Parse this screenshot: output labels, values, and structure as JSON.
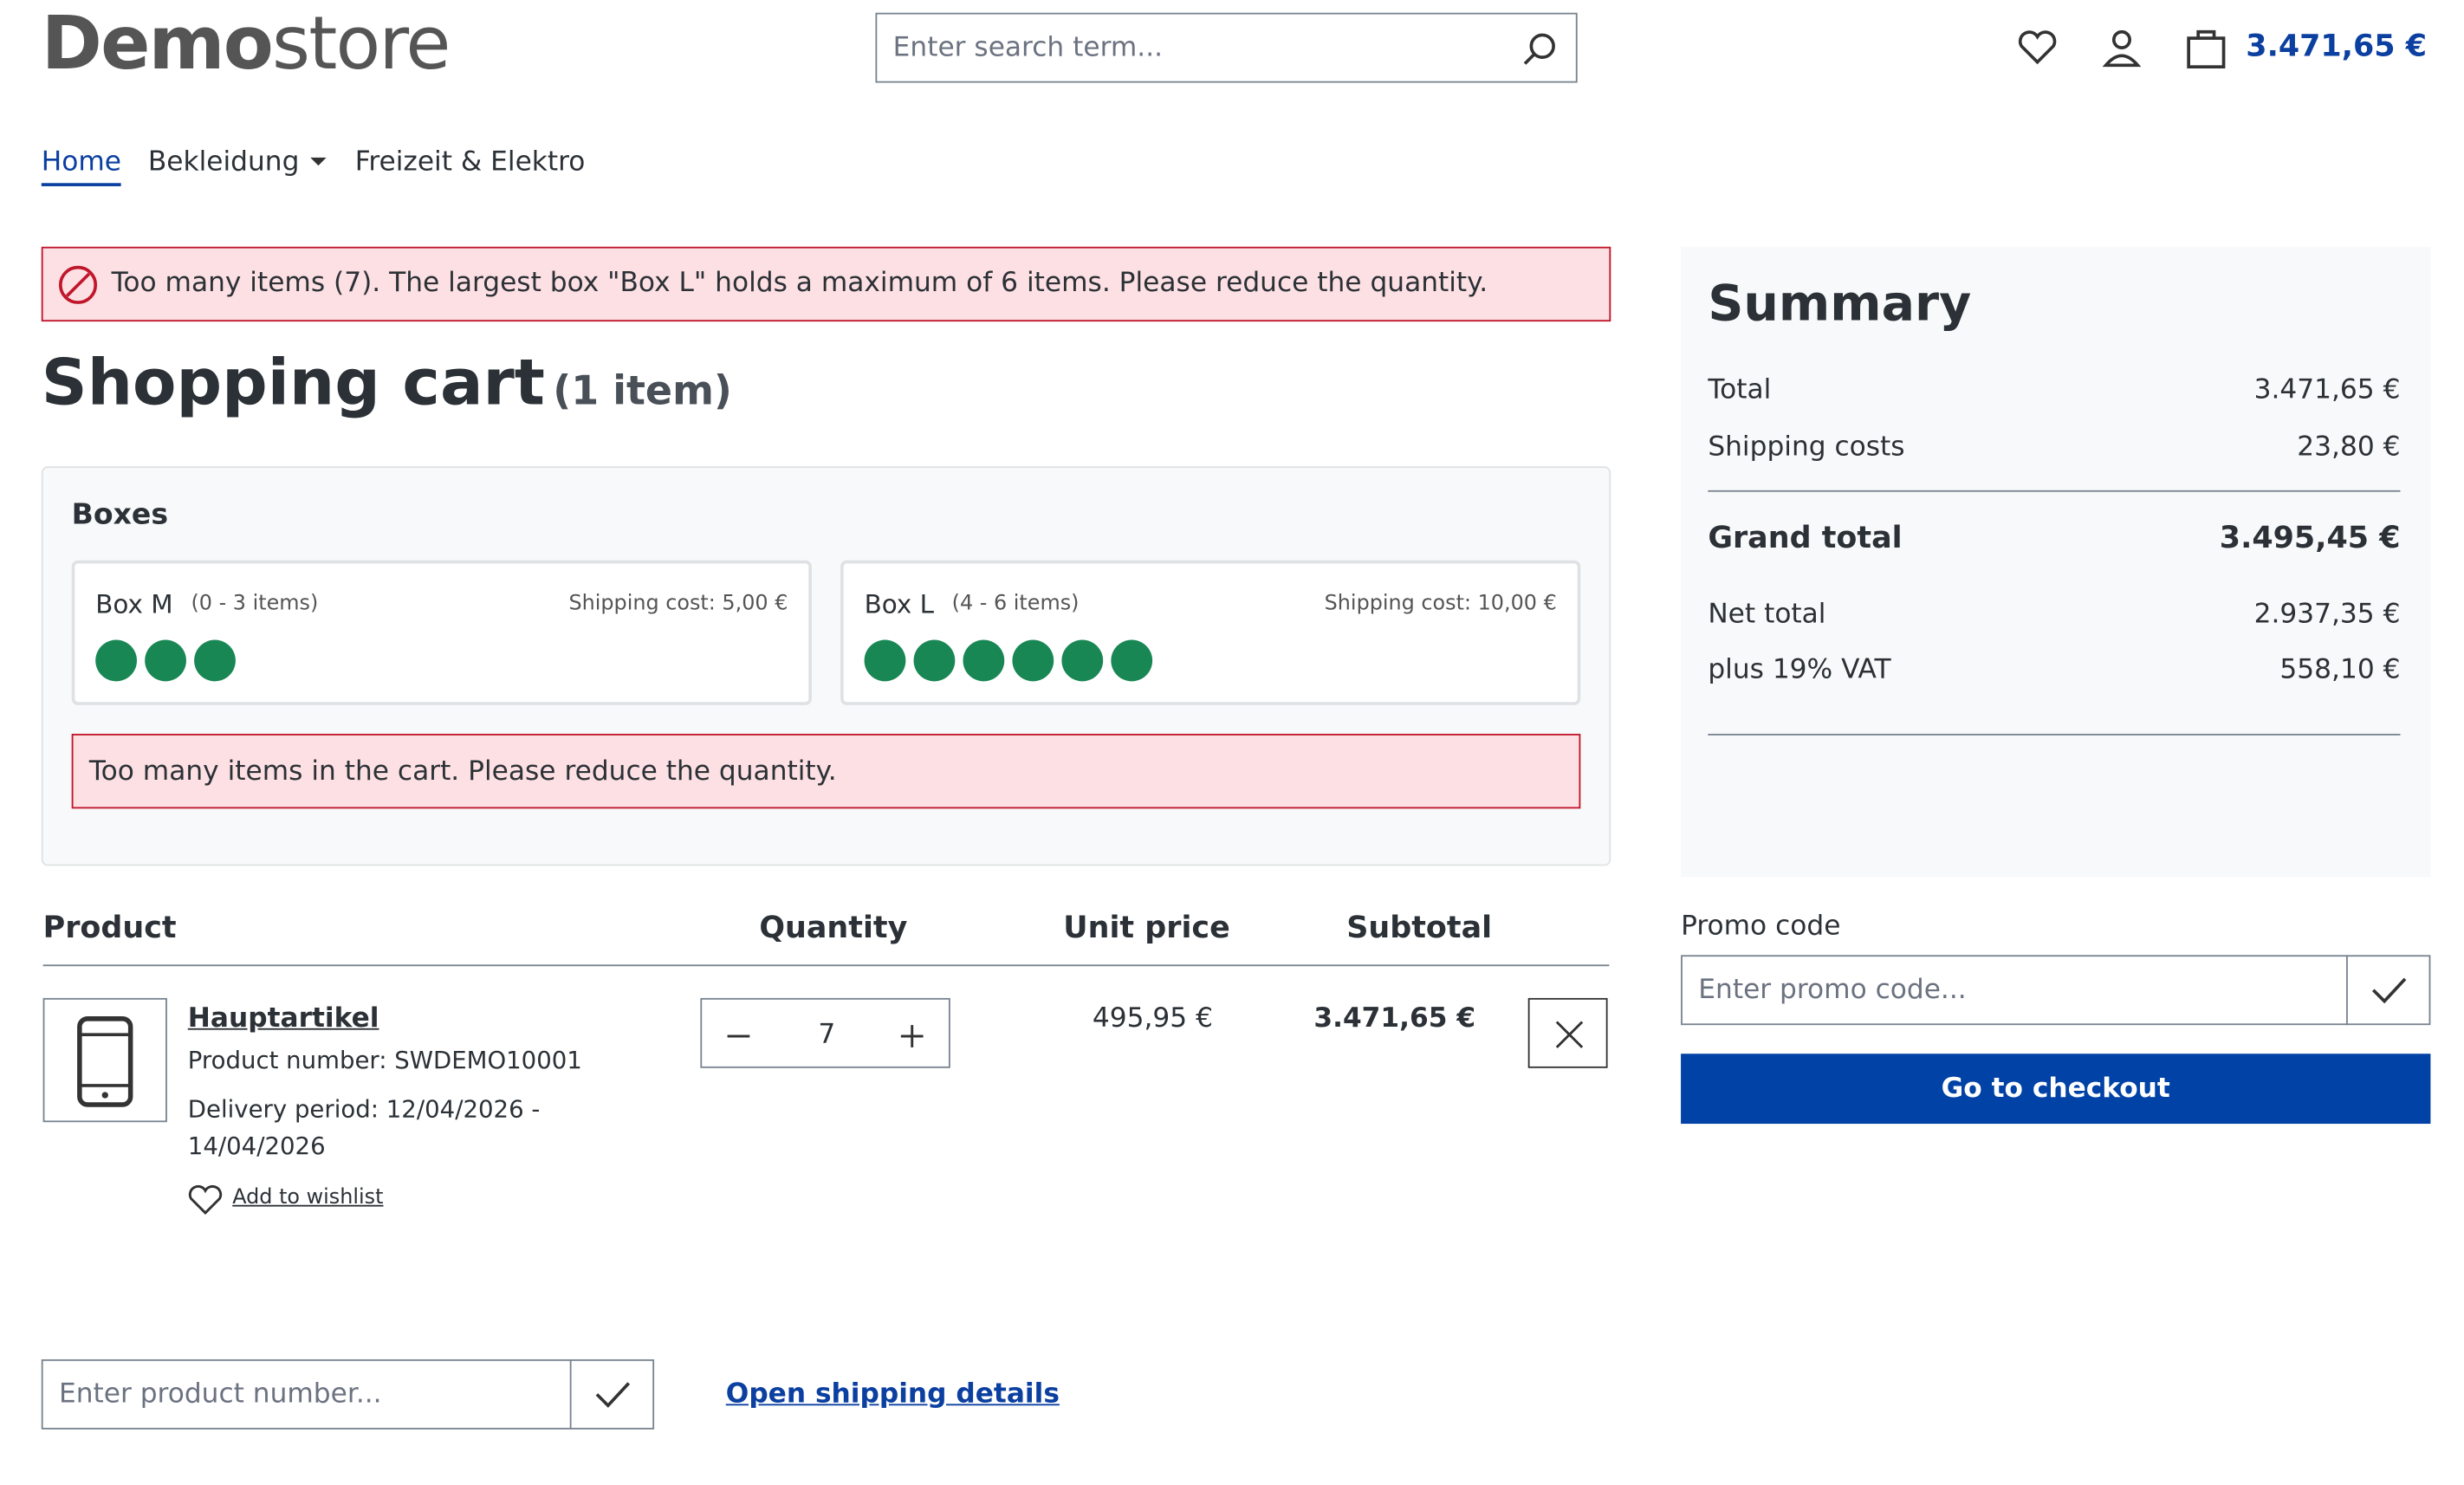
{
  "header": {
    "logo_bold": "Demo",
    "logo_light": "store",
    "search_placeholder": "Enter search term...",
    "cart_total": "3.471,65 €"
  },
  "nav": [
    "Home",
    "Bekleidung",
    "Freizeit & Elektro"
  ],
  "alert": "Too many items (7). The largest box \"Box L\" holds a maximum of 6 items. Please reduce the quantity.",
  "cart": {
    "title": "Shopping cart",
    "count": "(1 item)"
  },
  "boxes": {
    "title": "Boxes",
    "items": [
      {
        "name": "Box M",
        "range": "(0 - 3 items)",
        "shipping": "Shipping cost: 5,00 €"
      },
      {
        "name": "Box L",
        "range": "(4 - 6 items)",
        "shipping": "Shipping cost: 10,00 €"
      }
    ],
    "error": "Too many items in the cart. Please reduce the quantity."
  },
  "table": {
    "headers": [
      "Product",
      "Quantity",
      "Unit price",
      "Subtotal"
    ],
    "rows": [
      {
        "name": "Hauptartikel",
        "number": "Product number: SWDEMO10001",
        "delivery": "Delivery period: 12/04/2026 - 14/04/2026",
        "wishlist": "Add to wishlist",
        "quantity": 7,
        "unit_price": "495,95 €",
        "subtotal": "3.471,65 €"
      }
    ]
  },
  "summary": {
    "title": "Summary",
    "rows": [
      [
        "Total",
        "3.471,65 €"
      ],
      [
        "Shipping costs",
        "23,80 €"
      ]
    ],
    "grand_total": [
      "Grand total",
      "3.495,45 €"
    ],
    "tax_rows": [
      [
        "Net total",
        "2.937,35 €"
      ],
      [
        "plus 19% VAT",
        "558,10 €"
      ]
    ]
  },
  "promo": {
    "label": "Promo code",
    "placeholder": "Enter promo code...",
    "checkout": "Go to checkout"
  },
  "product_number_placeholder": "Enter product number...",
  "shipping_details": "Open shipping details"
}
